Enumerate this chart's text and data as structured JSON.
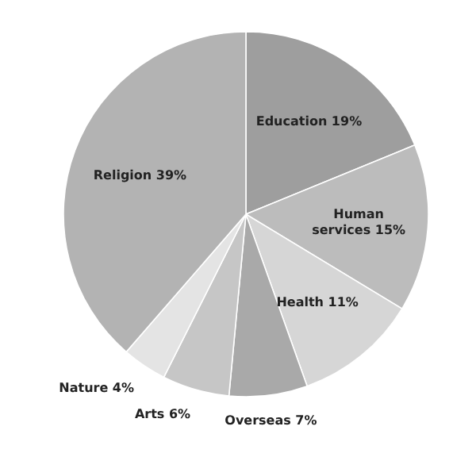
{
  "chart_data": {
    "type": "pie",
    "categories": [
      "Education",
      "Human services",
      "Health",
      "Overseas",
      "Arts",
      "Nature",
      "Religion"
    ],
    "values": [
      19,
      15,
      11,
      7,
      6,
      4,
      39
    ],
    "value_labels": [
      "19%",
      "15%",
      "11%",
      "7%",
      "6%",
      "4%",
      "39%"
    ],
    "colors": [
      "#9e9e9e",
      "#bcbcbc",
      "#d6d6d6",
      "#a9a9a9",
      "#c6c6c6",
      "#e4e4e4",
      "#b3b3b3"
    ],
    "legend": false
  }
}
